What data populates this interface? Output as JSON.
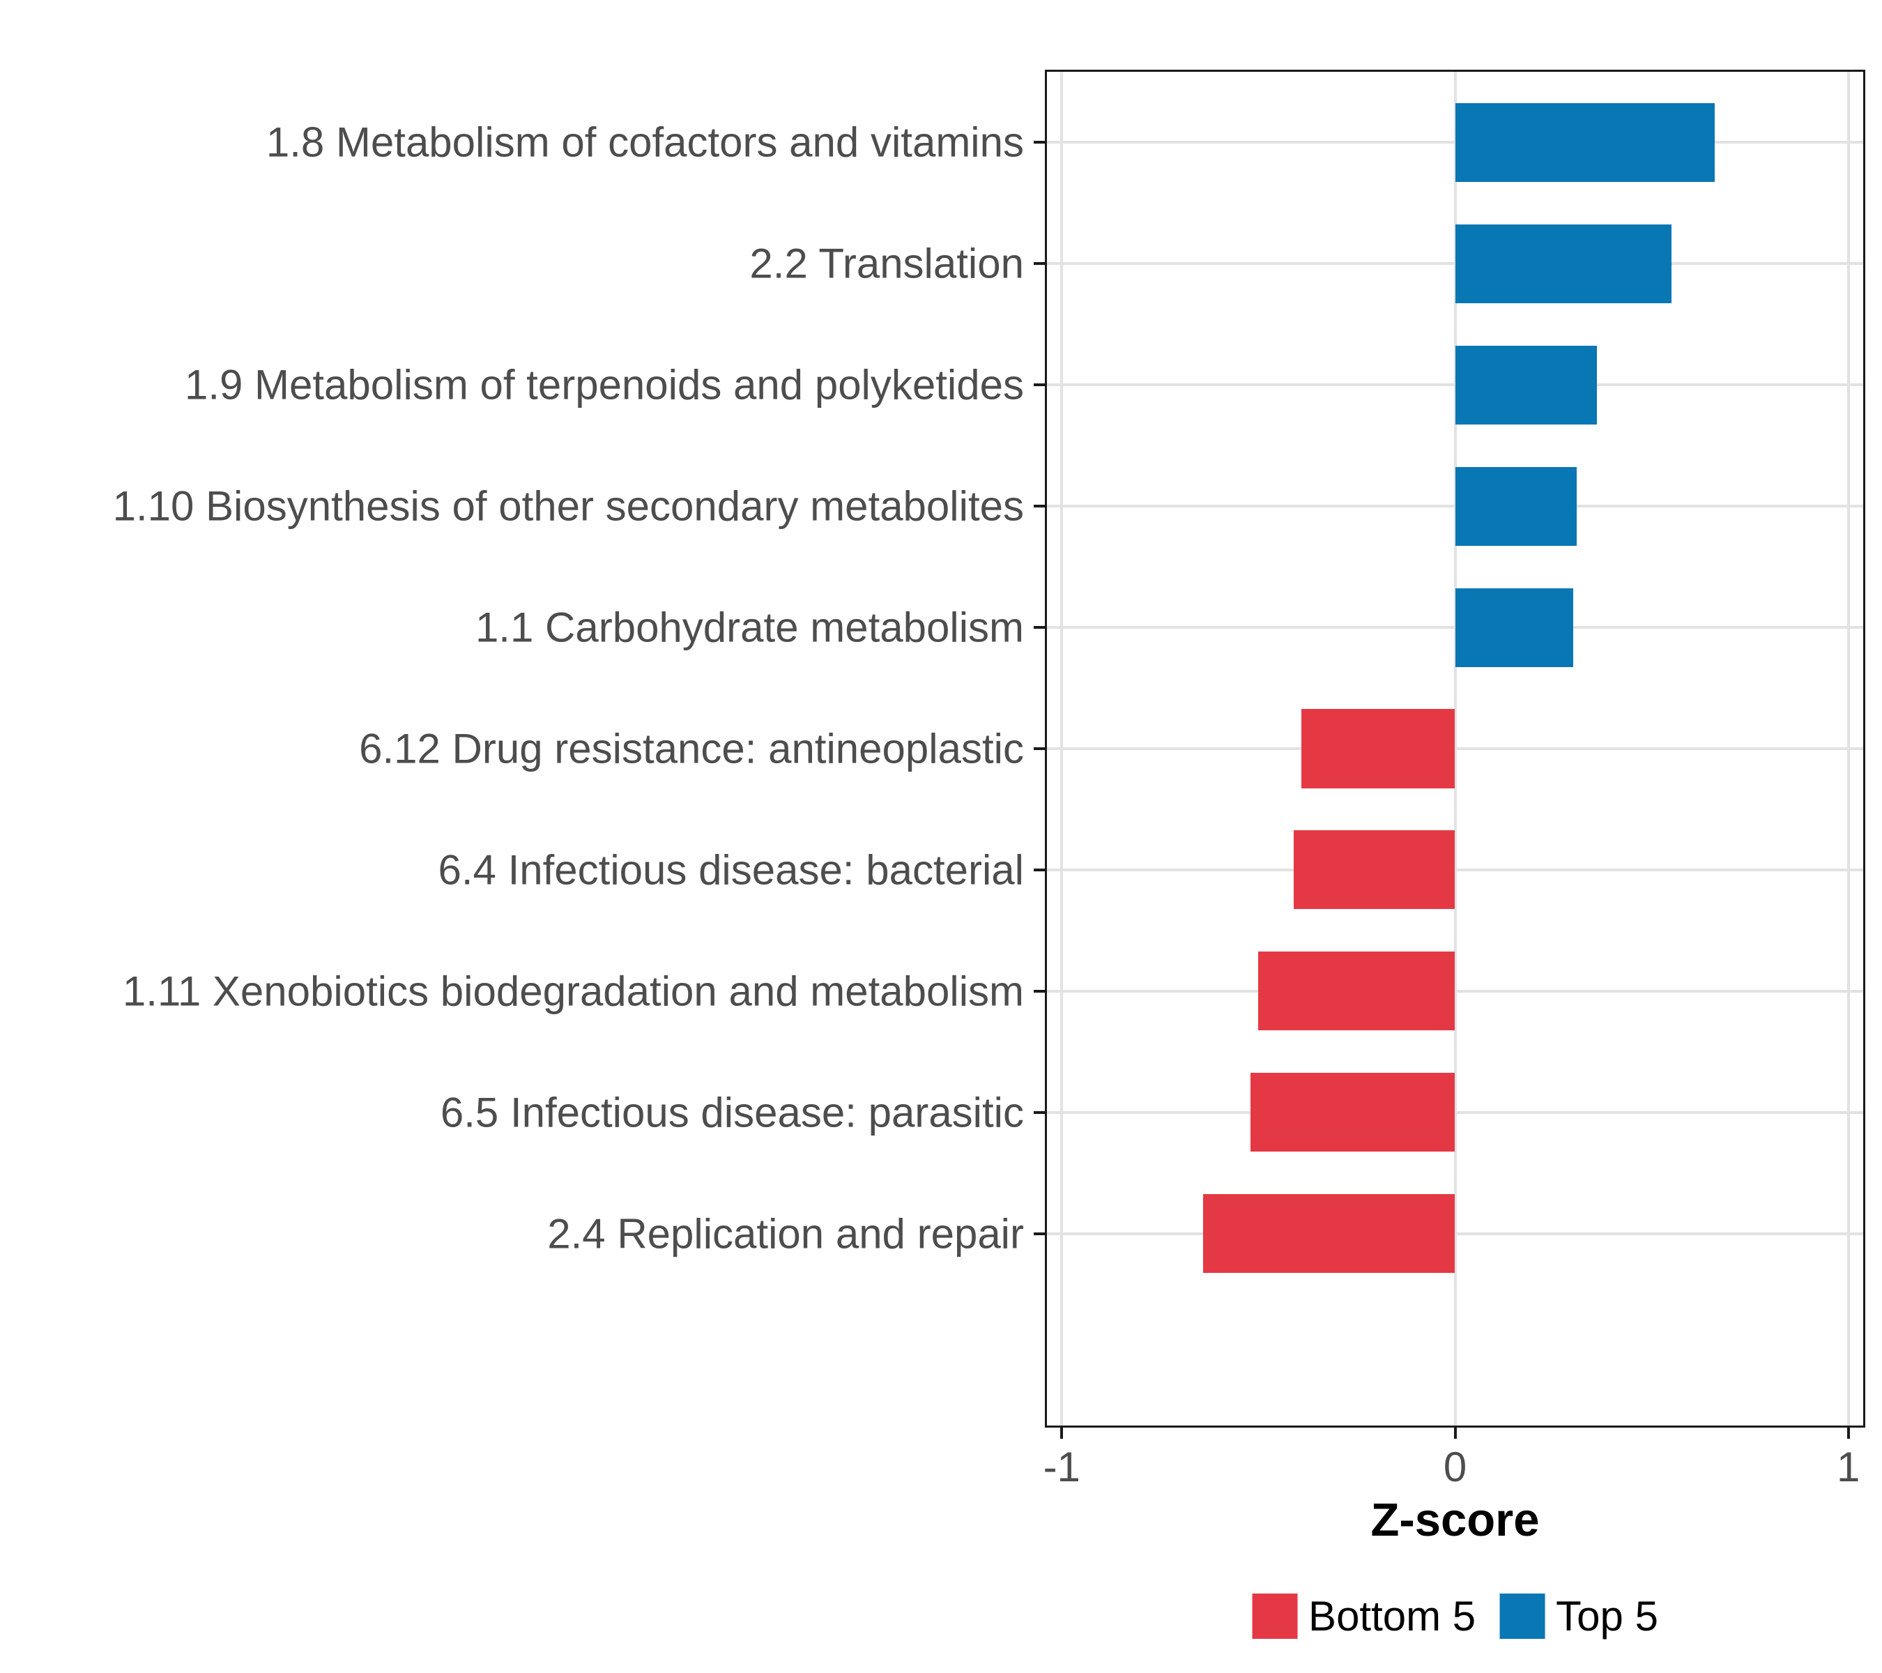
{
  "chart_data": {
    "type": "bar",
    "orientation": "horizontal",
    "title": "",
    "xlabel": "Z-score",
    "ylabel": "",
    "x_ticks": [
      -1,
      0,
      1
    ],
    "x_tick_labels": [
      "-1",
      "0",
      "1"
    ],
    "xlim": [
      -1.043,
      1.043
    ],
    "grid": true,
    "legend_position": "bottom",
    "categories": [
      "1.8 Metabolism of cofactors and vitamins",
      "2.2 Translation",
      "1.9 Metabolism of terpenoids and polyketides",
      "1.10 Biosynthesis of other secondary metabolites",
      "1.1 Carbohydrate metabolism",
      "6.12 Drug resistance: antineoplastic",
      "6.4 Infectious disease: bacterial",
      "1.11 Xenobiotics biodegradation and metabolism",
      "6.5 Infectious disease: parasitic",
      "2.4 Replication and repair"
    ],
    "values": [
      0.66,
      0.55,
      0.36,
      0.31,
      0.3,
      -0.39,
      -0.41,
      -0.5,
      -0.52,
      -0.64
    ],
    "groups": [
      "Top 5",
      "Top 5",
      "Top 5",
      "Top 5",
      "Top 5",
      "Bottom 5",
      "Bottom 5",
      "Bottom 5",
      "Bottom 5",
      "Bottom 5"
    ],
    "series": [
      {
        "name": "Bottom 5",
        "values": [
          -0.39,
          -0.41,
          -0.5,
          -0.52,
          -0.64
        ]
      },
      {
        "name": "Top 5",
        "values": [
          0.66,
          0.55,
          0.36,
          0.31,
          0.3
        ]
      }
    ],
    "series_colors": {
      "Bottom 5": "#e53845",
      "Top 5": "#0877b4"
    },
    "legend": [
      {
        "label": "Bottom 5",
        "color": "#e53845"
      },
      {
        "label": "Top 5",
        "color": "#0877b4"
      }
    ],
    "colors": {
      "grid": "#e2e2e2",
      "axis_text": "#4d4d4d",
      "panel_border": "#1a1a1a",
      "background": "#ffffff"
    }
  }
}
